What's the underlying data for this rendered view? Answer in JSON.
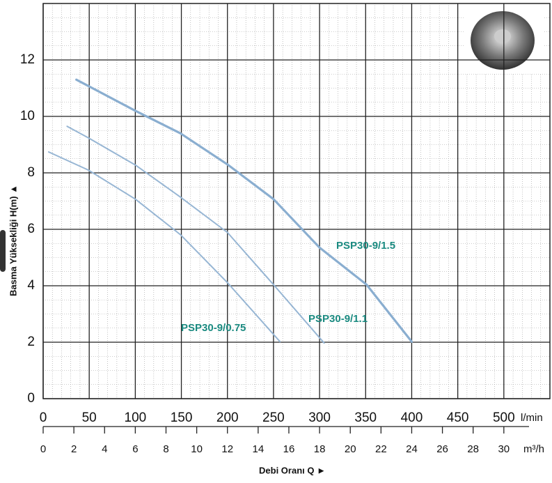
{
  "chart_data": {
    "type": "line",
    "y_label": "Basma Yüksekliği H(m) ▲",
    "x_label": "Debi Oranı Q ►",
    "x_unit": "l/min",
    "x2_unit": "m³/h",
    "xlim": [
      0,
      550
    ],
    "ylim": [
      0,
      14
    ],
    "xticks": [
      0,
      50,
      100,
      150,
      200,
      250,
      300,
      350,
      400,
      450,
      500
    ],
    "yticks": [
      0,
      2,
      4,
      6,
      8,
      10,
      12
    ],
    "x2lim": [
      0,
      33
    ],
    "x2ticks": [
      0,
      2,
      4,
      6,
      8,
      10,
      12,
      14,
      16,
      18,
      20,
      22,
      24,
      26,
      28,
      30
    ],
    "grid": true,
    "series": [
      {
        "name": "PSP30-9/1.5",
        "color": "#8aaed0",
        "x": [
          36,
          100,
          149,
          200,
          250,
          300,
          351,
          400
        ],
        "values": [
          11.3,
          10.2,
          9.4,
          8.3,
          7.07,
          5.35,
          4.04,
          2.02
        ]
      },
      {
        "name": "PSP30-9/1.1",
        "color": "#97b6d4",
        "x": [
          26,
          49,
          100,
          149,
          200,
          250,
          305
        ],
        "values": [
          9.65,
          9.24,
          8.28,
          7.14,
          5.89,
          4.04,
          1.97
        ]
      },
      {
        "name": "PSP30-9/0.75",
        "color": "#97b6d4",
        "x": [
          6,
          49,
          100,
          149,
          200,
          257
        ],
        "values": [
          8.74,
          8.1,
          7.07,
          5.81,
          4.11,
          2.02
        ]
      }
    ]
  }
}
